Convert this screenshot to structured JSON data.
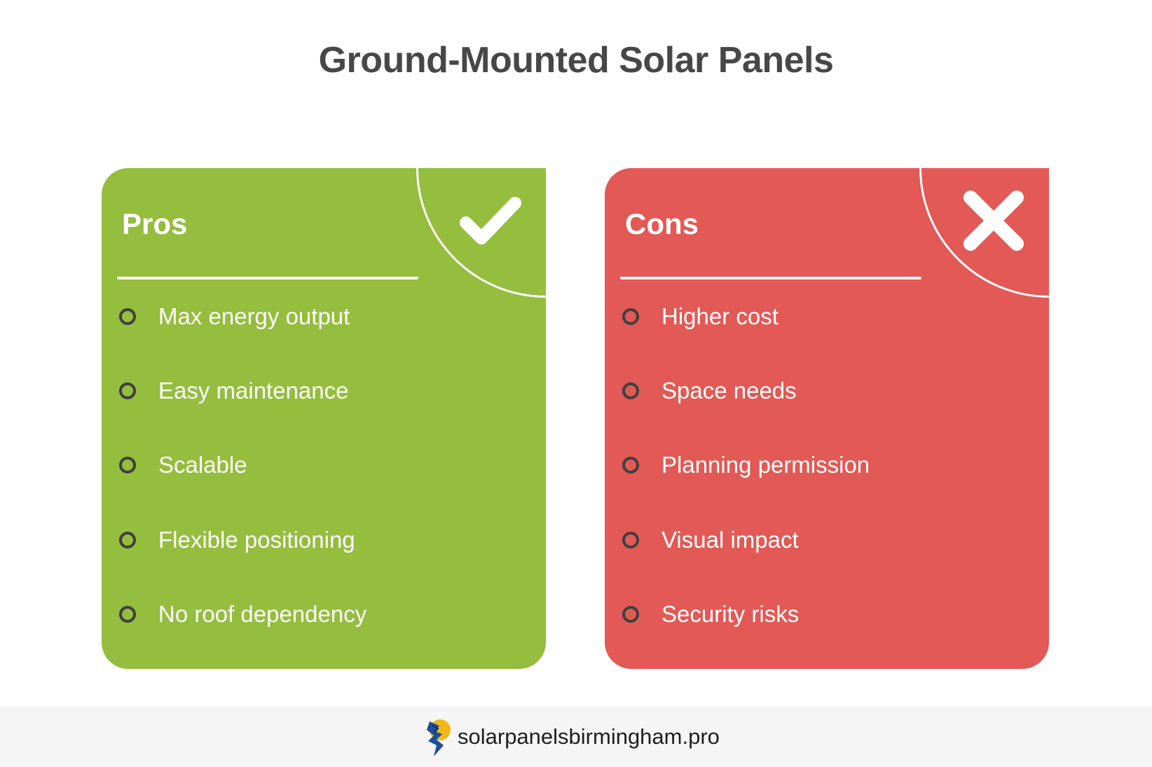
{
  "title": "Ground-Mounted Solar Panels",
  "pros": {
    "heading": "Pros",
    "icon": "checkmark-icon",
    "color": "#95bd3e",
    "items": [
      "Max energy output",
      "Easy maintenance",
      "Scalable",
      "Flexible positioning",
      "No roof dependency"
    ]
  },
  "cons": {
    "heading": "Cons",
    "icon": "cross-icon",
    "color": "#e35955",
    "items": [
      "Higher cost",
      "Space needs",
      "Planning permission",
      "Visual impact",
      "Security risks"
    ]
  },
  "footer": {
    "logo_icon": "solar-panels-birmingham-logo-icon",
    "site": "solarpanelsbirmingham.pro"
  }
}
